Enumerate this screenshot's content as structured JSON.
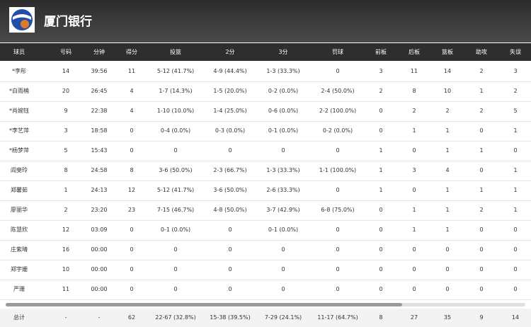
{
  "header": {
    "title": "厦门银行"
  },
  "table": {
    "columns": [
      "球员",
      "号码",
      "分钟",
      "得分",
      "投篮",
      "2分",
      "3分",
      "罚球",
      "前板",
      "后板",
      "篮板",
      "助攻",
      "失误"
    ],
    "rows": [
      [
        "*李彤",
        "14",
        "39:56",
        "11",
        "5-12 (41.7%)",
        "4-9 (44.4%)",
        "1-3 (33.3%)",
        "0",
        "3",
        "11",
        "14",
        "2",
        "3"
      ],
      [
        "*白雨楠",
        "20",
        "26:45",
        "4",
        "1-7 (14.3%)",
        "1-5 (20.0%)",
        "0-2 (0.0%)",
        "2-4 (50.0%)",
        "2",
        "8",
        "10",
        "1",
        "2"
      ],
      [
        "*肖婉钰",
        "9",
        "22:38",
        "4",
        "1-10 (10.0%)",
        "1-4 (25.0%)",
        "0-6 (0.0%)",
        "2-2 (100.0%)",
        "0",
        "2",
        "2",
        "2",
        "5"
      ],
      [
        "*李艺萍",
        "3",
        "18:58",
        "0",
        "0-4 (0.0%)",
        "0-3 (0.0%)",
        "0-1 (0.0%)",
        "0-2 (0.0%)",
        "0",
        "1",
        "1",
        "0",
        "1"
      ],
      [
        "*杨梦萍",
        "5",
        "15:43",
        "0",
        "0",
        "0",
        "0",
        "0",
        "1",
        "0",
        "1",
        "1",
        "0"
      ],
      [
        "阎斐玲",
        "8",
        "24:58",
        "8",
        "3-6 (50.0%)",
        "2-3 (66.7%)",
        "1-3 (33.3%)",
        "1-1 (100.0%)",
        "1",
        "3",
        "4",
        "0",
        "1"
      ],
      [
        "郑馨茹",
        "1",
        "24:13",
        "12",
        "5-12 (41.7%)",
        "3-6 (50.0%)",
        "2-6 (33.3%)",
        "0",
        "1",
        "0",
        "1",
        "1",
        "1"
      ],
      [
        "廖丽华",
        "2",
        "23:20",
        "23",
        "7-15 (46.7%)",
        "4-8 (50.0%)",
        "3-7 (42.9%)",
        "6-8 (75.0%)",
        "0",
        "1",
        "1",
        "2",
        "1"
      ],
      [
        "陈慧欣",
        "12",
        "03:09",
        "0",
        "0-1 (0.0%)",
        "0",
        "0-1 (0.0%)",
        "0",
        "0",
        "1",
        "1",
        "0",
        "0"
      ],
      [
        "庄紫晴",
        "16",
        "00:00",
        "0",
        "0",
        "0",
        "0",
        "0",
        "0",
        "0",
        "0",
        "0",
        "0"
      ],
      [
        "郑宇姗",
        "10",
        "00:00",
        "0",
        "0",
        "0",
        "0",
        "0",
        "0",
        "0",
        "0",
        "0",
        "0"
      ],
      [
        "严珊",
        "11",
        "00:00",
        "0",
        "0",
        "0",
        "0",
        "0",
        "0",
        "0",
        "0",
        "0",
        "0"
      ]
    ],
    "total": [
      "总计",
      "-",
      "-",
      "62",
      "22-67 (32.8%)",
      "15-38 (39.5%)",
      "7-29 (24.1%)",
      "11-17 (64.7%)",
      "8",
      "27",
      "35",
      "9",
      "14"
    ]
  }
}
